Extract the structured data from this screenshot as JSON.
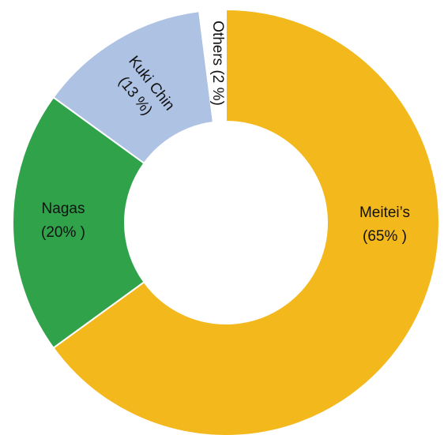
{
  "chart_data": {
    "type": "pie",
    "variant": "donut",
    "title": "",
    "legend": "none",
    "slices": [
      {
        "label": "Meitei’s",
        "display_value": "(65% )",
        "value": 65,
        "color": "#F2B81C"
      },
      {
        "label": "Nagas",
        "display_value": "(20% )",
        "value": 20,
        "color": "#2FA24A"
      },
      {
        "label": "Kuki Chin",
        "display_value": "(13 %)",
        "value": 13,
        "color": "#AEC3E4"
      },
      {
        "label": "Others",
        "display_value": "(2 %)",
        "value": 2,
        "color": "#FFFFFF"
      }
    ]
  }
}
